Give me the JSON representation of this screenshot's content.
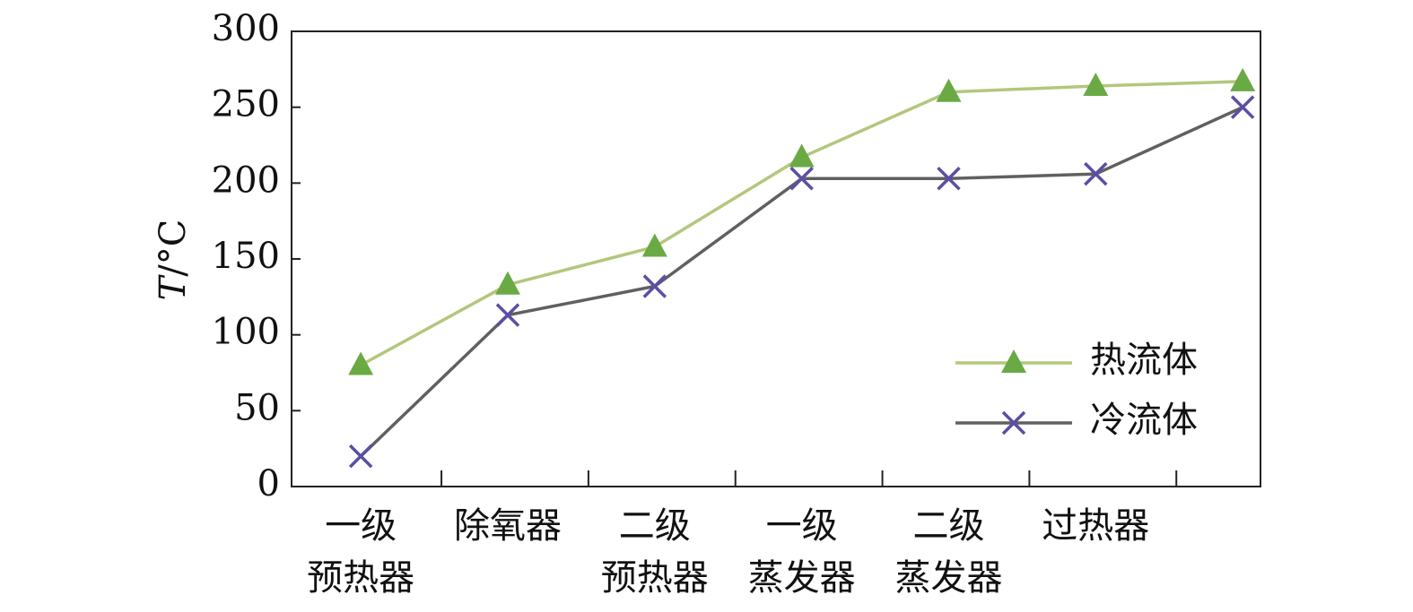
{
  "chart_data": {
    "type": "line",
    "y_label": "T/°C",
    "categories": [
      "一级\n预热器",
      "除氧器",
      "二级\n预热器",
      "一级\n蒸发器",
      "二级\n蒸发器",
      "过热器",
      null
    ],
    "series": [
      {
        "name": "热流体",
        "color": "#b3c77c",
        "marker_color": "#6aaa44",
        "marker": "triangle",
        "values": [
          80,
          133,
          158,
          217,
          260,
          264,
          267
        ]
      },
      {
        "name": "冷流体",
        "color": "#606060",
        "marker_color": "#5a4fa3",
        "marker": "x",
        "values": [
          20,
          113,
          132,
          203,
          203,
          206,
          250
        ]
      }
    ],
    "ylim": [
      0,
      300
    ],
    "yticks": [
      0,
      50,
      100,
      150,
      200,
      250,
      300
    ],
    "legend": "lower right"
  }
}
